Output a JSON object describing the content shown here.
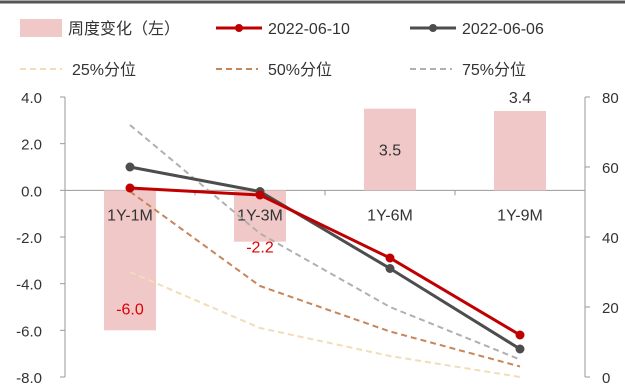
{
  "chart_data": {
    "type": "bar+line",
    "categories": [
      "1Y-1M",
      "1Y-3M",
      "1Y-6M",
      "1Y-9M"
    ],
    "left_axis": {
      "ylim": [
        -8.0,
        4.0
      ],
      "ticks": [
        "4.0",
        "2.0",
        "0.0",
        "-2.0",
        "-4.0",
        "-6.0",
        "-8.0"
      ]
    },
    "right_axis": {
      "ylim": [
        0,
        80
      ],
      "ticks": [
        "80",
        "60",
        "40",
        "20",
        "0"
      ]
    },
    "bar_series": {
      "name": "周度变化（左）",
      "color": "#f0c8c8",
      "values": [
        -6.0,
        -2.2,
        3.5,
        3.4
      ],
      "labels": [
        "-6.0",
        "-2.2",
        "3.5",
        "3.4"
      ]
    },
    "line_series": [
      {
        "name": "2022-06-10",
        "color": "#c00000",
        "style": "solid-marker",
        "values": [
          54,
          52,
          34,
          12
        ]
      },
      {
        "name": "2022-06-06",
        "color": "#4d4d4d",
        "style": "solid-marker",
        "values": [
          60,
          53,
          31,
          8
        ]
      },
      {
        "name": "25%分位",
        "color": "#f2ddb8",
        "style": "dashed",
        "values": [
          30,
          14,
          6,
          0
        ]
      },
      {
        "name": "50%分位",
        "color": "#c8855a",
        "style": "dashed",
        "values": [
          53,
          26,
          13,
          3
        ]
      },
      {
        "name": "75%分位",
        "color": "#b0b0b0",
        "style": "dashed",
        "values": [
          72,
          41,
          20,
          5
        ]
      }
    ]
  }
}
